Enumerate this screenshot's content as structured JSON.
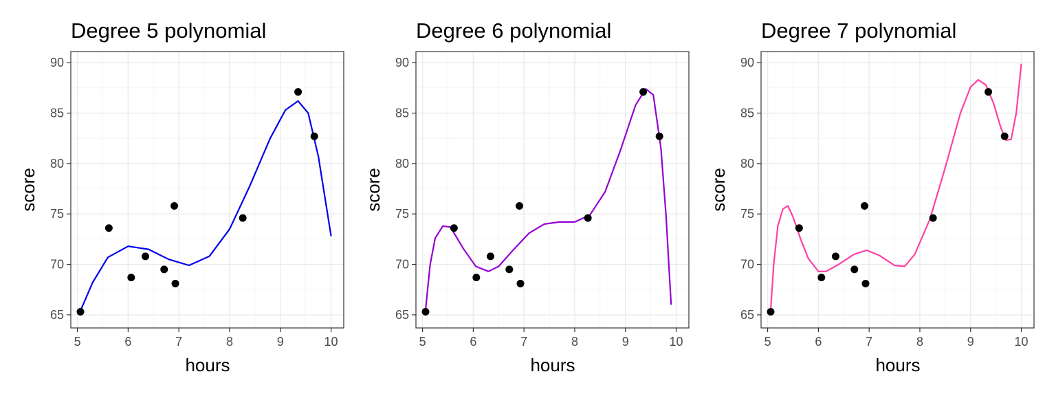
{
  "chart_data": [
    {
      "type": "line",
      "title": "Degree 5 polynomial",
      "xlabel": "hours",
      "ylabel": "score",
      "xlim": [
        4.87,
        10.25
      ],
      "ylim": [
        63.7,
        91.1
      ],
      "xticks": [
        "5",
        "6",
        "7",
        "8",
        "9",
        "10"
      ],
      "yticks": [
        "65",
        "70",
        "75",
        "80",
        "85",
        "90"
      ],
      "grid": true,
      "curve_color": "#0000ee",
      "points": {
        "x": [
          5.06,
          5.62,
          6.06,
          6.34,
          6.71,
          6.91,
          6.93,
          8.26,
          9.35,
          9.67
        ],
        "y": [
          65.3,
          73.6,
          68.7,
          70.8,
          69.5,
          75.8,
          68.1,
          74.6,
          87.1,
          82.7
        ]
      },
      "curve": {
        "x": [
          5.06,
          5.3,
          5.6,
          6.0,
          6.4,
          6.8,
          7.2,
          7.6,
          8.0,
          8.4,
          8.8,
          9.1,
          9.35,
          9.55,
          9.75,
          10.0
        ],
        "y": [
          65.4,
          68.2,
          70.7,
          71.8,
          71.5,
          70.5,
          69.9,
          70.8,
          73.5,
          77.8,
          82.5,
          85.3,
          86.2,
          85.0,
          80.7,
          72.8
        ]
      }
    },
    {
      "type": "line",
      "title": "Degree 6 polynomial",
      "xlabel": "hours",
      "ylabel": "score",
      "xlim": [
        4.87,
        10.25
      ],
      "ylim": [
        63.7,
        91.1
      ],
      "xticks": [
        "5",
        "6",
        "7",
        "8",
        "9",
        "10"
      ],
      "yticks": [
        "65",
        "70",
        "75",
        "80",
        "85",
        "90"
      ],
      "grid": true,
      "curve_color": "#9400d3",
      "points": {
        "x": [
          5.06,
          5.62,
          6.06,
          6.34,
          6.71,
          6.91,
          6.93,
          8.26,
          9.35,
          9.67
        ],
        "y": [
          65.3,
          73.6,
          68.7,
          70.8,
          69.5,
          75.8,
          68.1,
          74.6,
          87.1,
          82.7
        ]
      },
      "curve": {
        "x": [
          5.06,
          5.15,
          5.25,
          5.4,
          5.55,
          5.8,
          6.05,
          6.3,
          6.5,
          6.8,
          7.1,
          7.4,
          7.7,
          8.0,
          8.3,
          8.6,
          8.9,
          9.2,
          9.4,
          9.55,
          9.7,
          9.8,
          9.9
        ],
        "y": [
          65.5,
          70.0,
          72.6,
          73.8,
          73.7,
          71.6,
          69.8,
          69.3,
          69.8,
          71.5,
          73.1,
          74.0,
          74.2,
          74.2,
          74.9,
          77.2,
          81.3,
          85.8,
          87.4,
          86.8,
          81.5,
          74.8,
          66.0
        ]
      }
    },
    {
      "type": "line",
      "title": "Degree 7 polynomial",
      "xlabel": "hours",
      "ylabel": "score",
      "xlim": [
        4.87,
        10.25
      ],
      "ylim": [
        63.7,
        91.1
      ],
      "xticks": [
        "5",
        "6",
        "7",
        "8",
        "9",
        "10"
      ],
      "yticks": [
        "65",
        "70",
        "75",
        "80",
        "85",
        "90"
      ],
      "grid": true,
      "curve_color": "#ff3fa4",
      "points": {
        "x": [
          5.06,
          5.62,
          6.06,
          6.34,
          6.71,
          6.91,
          6.93,
          8.26,
          9.35,
          9.67
        ],
        "y": [
          65.3,
          73.6,
          68.7,
          70.8,
          69.5,
          75.8,
          68.1,
          74.6,
          87.1,
          82.7
        ]
      },
      "curve": {
        "x": [
          5.06,
          5.12,
          5.2,
          5.3,
          5.4,
          5.5,
          5.65,
          5.8,
          6.0,
          6.15,
          6.4,
          6.7,
          6.95,
          7.2,
          7.5,
          7.7,
          7.9,
          8.2,
          8.5,
          8.8,
          9.0,
          9.15,
          9.3,
          9.45,
          9.6,
          9.7,
          9.8,
          9.9,
          10.0
        ],
        "y": [
          65.5,
          70.0,
          73.8,
          75.5,
          75.8,
          74.7,
          72.5,
          70.6,
          69.3,
          69.3,
          70.0,
          71.0,
          71.4,
          70.9,
          69.9,
          69.8,
          71.0,
          74.5,
          79.6,
          85.0,
          87.6,
          88.3,
          87.8,
          86.0,
          83.5,
          82.3,
          82.4,
          85.0,
          89.9
        ]
      }
    }
  ]
}
